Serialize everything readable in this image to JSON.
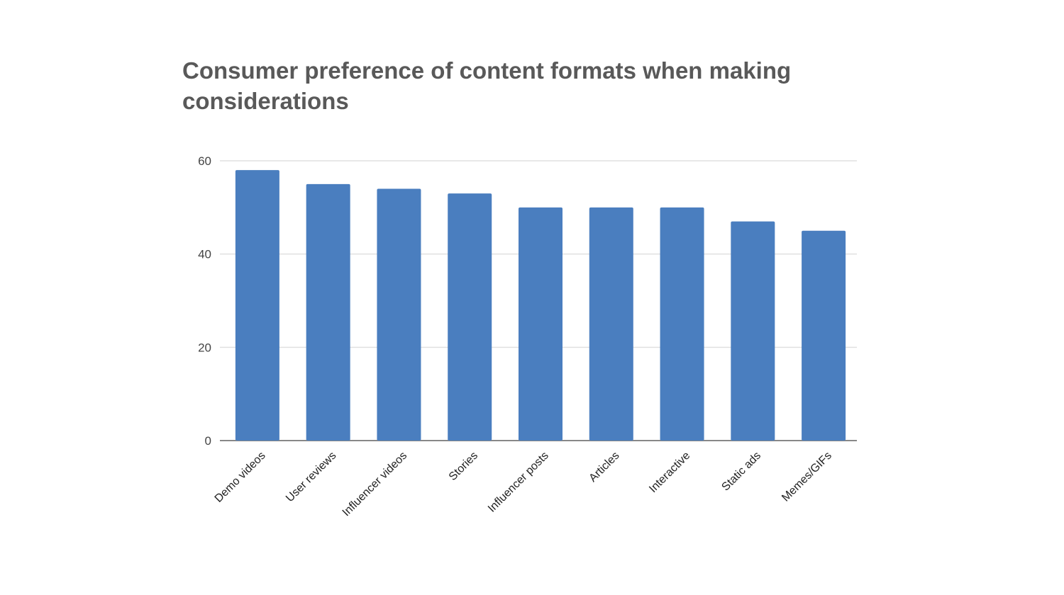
{
  "chart_data": {
    "type": "bar",
    "title": "Consumer preference of content formats when making considerations",
    "xlabel": "",
    "ylabel": "",
    "categories": [
      "Demo videos",
      "User reviews",
      "Influencer videos",
      "Stories",
      "Influencer posts",
      "Articles",
      "Interactive",
      "Static ads",
      "Memes/GIFs"
    ],
    "values": [
      58,
      55,
      54,
      53,
      50,
      50,
      50,
      47,
      45
    ],
    "ylim": [
      0,
      60
    ],
    "yticks": [
      0,
      20,
      40,
      60
    ],
    "grid": true,
    "legend": "none",
    "bar_color": "#4a7ebf"
  }
}
